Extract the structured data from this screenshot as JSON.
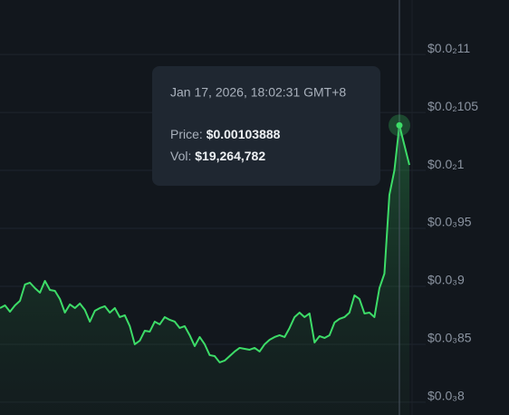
{
  "chart_data": {
    "type": "area-line",
    "series": [
      {
        "color": "#3ddc68",
        "values": [
          0.00088125,
          0.00088359,
          0.00087813,
          0.00088359,
          0.0008875,
          0.00090156,
          0.00090313,
          0.00089844,
          0.00089453,
          0.00090469,
          0.00089688,
          0.00089609,
          0.00088906,
          0.00087734,
          0.00088438,
          0.00088125,
          0.00088516,
          0.00087969,
          0.00086953,
          0.00087891,
          0.00088125,
          0.00088281,
          0.00087734,
          0.00088125,
          0.00087344,
          0.000875,
          0.00086563,
          0.00085,
          0.00085313,
          0.00086172,
          0.00086094,
          0.00086953,
          0.00086719,
          0.00087344,
          0.0008711,
          0.00086953,
          0.00086406,
          0.00086563,
          0.00085781,
          0.00084844,
          0.00085625,
          0.00085,
          0.00084063,
          0.00083984,
          0.00083438,
          0.00083594,
          0.00083984,
          0.00084375,
          0.00084688,
          0.00084609,
          0.00084531,
          0.00084688,
          0.00084375,
          0.00085,
          0.00085391,
          0.00085625,
          0.00085781,
          0.00085625,
          0.00086406,
          0.00087344,
          0.00087734,
          0.00087344,
          0.00087656,
          0.00085156,
          0.00085703,
          0.00085547,
          0.00085781,
          0.00086875,
          0.00087188,
          0.00087344,
          0.00087734,
          0.00089219,
          0.00088906,
          0.00087656,
          0.00087734,
          0.00087344,
          0.00089844,
          0.00091094,
          0.00097891,
          0.001,
          0.00103888,
          0.00102188,
          0.00100469
        ]
      }
    ],
    "ylim": [
      0.000789,
      0.001147
    ],
    "yticks": [
      {
        "value": 0.0011,
        "label": "$0.0₂11"
      },
      {
        "value": 0.00105,
        "label": "$0.0₂105"
      },
      {
        "value": 0.001,
        "label": "$0.0₂1"
      },
      {
        "value": 0.00095,
        "label": "$0.0₃95"
      },
      {
        "value": 0.0009,
        "label": "$0.0₃9"
      },
      {
        "value": 0.00085,
        "label": "$0.0₃85"
      },
      {
        "value": 0.0008,
        "label": "$0.0₃8"
      }
    ],
    "grid": true,
    "tooltip": {
      "date": "Jan 17, 2026, 18:02:31 GMT+8",
      "price_label": "Price:",
      "price": "$0.00103888",
      "vol_label": "Vol:",
      "vol": "$19,264,782"
    }
  }
}
